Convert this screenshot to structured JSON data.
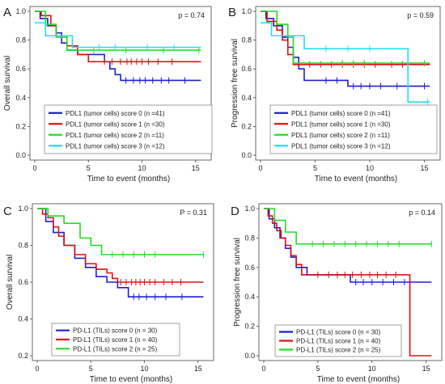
{
  "chart_data": [
    {
      "panel_label": "A",
      "type": "line",
      "step": true,
      "ylabel": "Overall survival",
      "xlabel": "Time to event (months)",
      "p_value_text": "p =  0.74",
      "xlim": [
        0,
        16
      ],
      "ylim": [
        0,
        1
      ],
      "xticks": [
        0,
        5,
        10,
        15
      ],
      "yticks": [
        "0.0",
        "0.2",
        "0.4",
        "0.6",
        "0.8",
        "1.0"
      ],
      "legend_position": "bottom-center",
      "series": [
        {
          "name": "PDL1 (tumor cells) score 0 (n =41)",
          "color": "#1f1fd0",
          "x": [
            0,
            0.5,
            1.2,
            2.0,
            2.5,
            3.0,
            4.0,
            6.5,
            7.0,
            7.5,
            8.0,
            15.5
          ],
          "y": [
            1.0,
            0.95,
            0.9,
            0.85,
            0.78,
            0.73,
            0.7,
            0.65,
            0.6,
            0.56,
            0.52,
            0.52
          ],
          "censor_x": [
            8.5,
            9.2,
            9.8,
            10.3,
            11.0,
            11.8,
            12.5,
            14.0
          ],
          "censor_y": [
            0.52,
            0.52,
            0.52,
            0.52,
            0.52,
            0.52,
            0.52,
            0.52
          ]
        },
        {
          "name": "PDL1 (tumor cells) score 1 (n =30)",
          "color": "#e01010",
          "x": [
            0,
            0.6,
            1.5,
            2.0,
            3.0,
            4.0,
            5.0,
            15.5
          ],
          "y": [
            1.0,
            0.97,
            0.9,
            0.83,
            0.76,
            0.7,
            0.65,
            0.65
          ],
          "censor_x": [
            6.5,
            7.2,
            8.0,
            8.6,
            9.0,
            9.5,
            10.0,
            10.6,
            11.5,
            12.8
          ],
          "censor_y": [
            0.65,
            0.65,
            0.65,
            0.65,
            0.65,
            0.65,
            0.65,
            0.65,
            0.65,
            0.65
          ]
        },
        {
          "name": "PDL1 (tumor cells) score 2 (n =11)",
          "color": "#22dd22",
          "x": [
            0,
            1.0,
            2.0,
            3.0,
            15.5
          ],
          "y": [
            1.0,
            0.91,
            0.82,
            0.73,
            0.73
          ],
          "censor_x": [
            5.5,
            8.5,
            12.0,
            15.3
          ],
          "censor_y": [
            0.73,
            0.73,
            0.73,
            0.73
          ]
        },
        {
          "name": "PDL1 (tumor cells) score 3 (n =12)",
          "color": "#22ddee",
          "x": [
            0,
            1.0,
            3.5,
            15.5
          ],
          "y": [
            0.92,
            0.83,
            0.75,
            0.75
          ],
          "censor_x": [
            6.0,
            7.5,
            10.5,
            13.0
          ],
          "censor_y": [
            0.75,
            0.75,
            0.75,
            0.75
          ]
        }
      ]
    },
    {
      "panel_label": "B",
      "type": "line",
      "step": true,
      "ylabel": "Progression free  survival",
      "xlabel": "Time to event (months)",
      "p_value_text": "p =  0.59",
      "xlim": [
        0,
        16
      ],
      "ylim": [
        0,
        1
      ],
      "xticks": [
        0,
        5,
        10,
        15
      ],
      "yticks": [
        "0.0",
        "0.2",
        "0.4",
        "0.6",
        "0.8",
        "1.0"
      ],
      "legend_position": "bottom-center",
      "series": [
        {
          "name": "PDL1 (tumor cells) score 0 (n =41)",
          "color": "#1f1fd0",
          "x": [
            0,
            0.5,
            1.2,
            2.0,
            2.5,
            3.0,
            3.5,
            4.0,
            8.0,
            15.5
          ],
          "y": [
            1.0,
            0.95,
            0.9,
            0.82,
            0.75,
            0.68,
            0.6,
            0.52,
            0.48,
            0.48
          ],
          "censor_x": [
            6.0,
            7.0,
            8.5,
            9.2,
            10.0,
            11.0,
            12.5,
            15.0
          ],
          "censor_y": [
            0.52,
            0.52,
            0.48,
            0.48,
            0.48,
            0.48,
            0.48,
            0.48
          ]
        },
        {
          "name": "PDL1 (tumor cells) score 1 (n =30)",
          "color": "#e01010",
          "x": [
            0,
            0.6,
            1.5,
            2.0,
            2.5,
            3.0,
            15.5
          ],
          "y": [
            1.0,
            0.93,
            0.87,
            0.8,
            0.7,
            0.63,
            0.63
          ],
          "censor_x": [
            4.5,
            5.5,
            6.5,
            7.5,
            8.5,
            9.5,
            10.5,
            12.0,
            13.0
          ],
          "censor_y": [
            0.63,
            0.63,
            0.63,
            0.63,
            0.63,
            0.63,
            0.63,
            0.63,
            0.63
          ]
        },
        {
          "name": "PDL1 (tumor cells) score 2 (n =11)",
          "color": "#22dd22",
          "x": [
            0,
            1.5,
            2.5,
            3.0,
            15.5
          ],
          "y": [
            1.0,
            0.91,
            0.82,
            0.64,
            0.64
          ],
          "censor_x": [
            7.5,
            8.5,
            9.5,
            15.0
          ],
          "censor_y": [
            0.64,
            0.64,
            0.64,
            0.64
          ]
        },
        {
          "name": "PDL1 (tumor cells) score 3 (n =12)",
          "color": "#22ddee",
          "x": [
            0,
            1.0,
            1.5,
            4.0,
            13.5,
            15.5
          ],
          "y": [
            0.92,
            0.83,
            0.83,
            0.74,
            0.37,
            0.37
          ],
          "censor_x": [
            6.0,
            8.0,
            10.0,
            15.3
          ],
          "censor_y": [
            0.74,
            0.74,
            0.74,
            0.37
          ]
        }
      ]
    },
    {
      "panel_label": "C",
      "type": "line",
      "step": true,
      "ylabel": "Overall survival",
      "xlabel": "Time to event (months)",
      "p_value_text": "P = 0.31",
      "xlim": [
        0,
        16
      ],
      "ylim": [
        0.2,
        1
      ],
      "xticks": [
        0,
        5,
        10,
        15
      ],
      "yticks": [
        "0.2",
        "0.4",
        "0.6",
        "0.8",
        "1.0"
      ],
      "legend_position": "bottom-center",
      "series": [
        {
          "name": "PD-L1 (TILs) score 0 (n = 30)",
          "color": "#1f1fd0",
          "x": [
            0,
            0.8,
            1.5,
            2.5,
            3.5,
            4.5,
            5.5,
            6.5,
            7.5,
            8.5,
            15.5
          ],
          "y": [
            1.0,
            0.93,
            0.87,
            0.8,
            0.73,
            0.68,
            0.63,
            0.6,
            0.57,
            0.52,
            0.52
          ],
          "censor_x": [
            9.0,
            9.5,
            10.2,
            11.0,
            12.0,
            13.5
          ],
          "censor_y": [
            0.52,
            0.52,
            0.52,
            0.52,
            0.52,
            0.52
          ]
        },
        {
          "name": "PD-L1 (TILs) score 1 (n = 40)",
          "color": "#e01010",
          "x": [
            0,
            0.5,
            1.0,
            1.5,
            2.0,
            2.5,
            3.5,
            4.5,
            5.5,
            6.5,
            7.0,
            7.5,
            15.5
          ],
          "y": [
            1.0,
            0.97,
            0.95,
            0.9,
            0.85,
            0.8,
            0.75,
            0.7,
            0.67,
            0.65,
            0.62,
            0.6,
            0.6
          ],
          "censor_x": [
            7.8,
            8.3,
            8.8,
            9.2,
            9.6,
            10.0,
            10.5,
            11.0,
            11.8,
            12.6,
            13.4
          ],
          "censor_y": [
            0.6,
            0.6,
            0.6,
            0.6,
            0.6,
            0.6,
            0.6,
            0.6,
            0.6,
            0.6,
            0.6
          ]
        },
        {
          "name": "PD-L1 (TILs) score 2 (n = 25)",
          "color": "#22dd22",
          "x": [
            0,
            1.0,
            2.5,
            4.0,
            5.0,
            6.0,
            15.5
          ],
          "y": [
            1.0,
            0.96,
            0.92,
            0.84,
            0.8,
            0.75,
            0.75
          ],
          "censor_x": [
            7.0,
            8.0,
            9.0,
            10.0,
            11.0,
            15.5
          ],
          "censor_y": [
            0.75,
            0.75,
            0.75,
            0.75,
            0.75,
            0.75
          ]
        }
      ]
    },
    {
      "panel_label": "D",
      "type": "line",
      "step": true,
      "ylabel": "Progression free  survival",
      "xlabel": "Time to event (months)",
      "p_value_text": "p = 0.14",
      "xlim": [
        0,
        16
      ],
      "ylim": [
        0,
        1
      ],
      "xticks": [
        0,
        5,
        10,
        15
      ],
      "yticks": [
        "0.0",
        "0.2",
        "0.4",
        "0.6",
        "0.8",
        "1.0"
      ],
      "legend_position": "bottom-center",
      "series": [
        {
          "name": "PD-L1 (TILs) score 0 (n = 30)",
          "color": "#1f1fd0",
          "x": [
            0,
            0.5,
            1.0,
            1.5,
            2.0,
            2.5,
            3.0,
            4.0,
            8.0,
            15.5
          ],
          "y": [
            1.0,
            0.93,
            0.87,
            0.8,
            0.73,
            0.67,
            0.6,
            0.55,
            0.5,
            0.5
          ],
          "censor_x": [
            8.5,
            9.2,
            10.0,
            11.0,
            12.0,
            13.0
          ],
          "censor_y": [
            0.5,
            0.5,
            0.5,
            0.5,
            0.5,
            0.5
          ]
        },
        {
          "name": "PD-L1 (TILs) score 1 (n = 40)",
          "color": "#e01010",
          "x": [
            0,
            0.4,
            0.8,
            1.2,
            1.6,
            2.0,
            2.5,
            3.0,
            3.5,
            13.5,
            15.5
          ],
          "y": [
            1.0,
            0.95,
            0.9,
            0.85,
            0.8,
            0.75,
            0.68,
            0.62,
            0.55,
            0.0,
            0.0
          ],
          "censor_x": [
            5.0,
            6.0,
            6.8,
            7.5,
            8.2,
            9.0,
            9.8,
            10.5,
            11.3,
            12.2
          ],
          "censor_y": [
            0.55,
            0.55,
            0.55,
            0.55,
            0.55,
            0.55,
            0.55,
            0.55,
            0.55,
            0.55
          ]
        },
        {
          "name": "PD-L1 (TILs) score 2 (n = 25)",
          "color": "#22dd22",
          "x": [
            0,
            1.0,
            2.0,
            3.0,
            15.5
          ],
          "y": [
            1.0,
            0.92,
            0.84,
            0.76,
            0.76
          ],
          "censor_x": [
            4.5,
            5.5,
            6.5,
            7.5,
            8.5,
            9.5,
            10.5,
            11.5,
            12.5,
            15.5
          ],
          "censor_y": [
            0.76,
            0.76,
            0.76,
            0.76,
            0.76,
            0.76,
            0.76,
            0.76,
            0.76,
            0.76
          ]
        }
      ]
    }
  ]
}
